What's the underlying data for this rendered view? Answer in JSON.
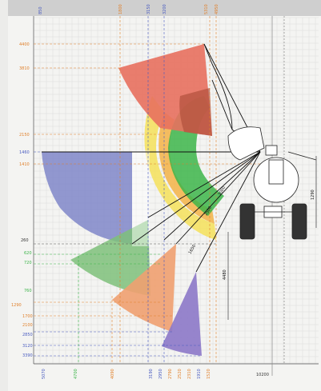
{
  "diagram": {
    "colors": {
      "red": "#e8705e",
      "yellow": "#f4e15a",
      "green": "#3cb54a",
      "blue": "#7f86c9",
      "orange": "#f0a070",
      "purple": "#8c78c8",
      "grid": "#d7d7d7",
      "dim_orange": "#e0802c",
      "dim_blue": "#4a5cc0"
    },
    "labels": {
      "top_1": "850",
      "top_2": "1800",
      "top_3": "3150",
      "top_4": "3200",
      "top_5": "5310",
      "top_6": "4950",
      "left_1": "4400",
      "left_2": "3810",
      "left_3": "2150",
      "left_4": "1460",
      "left_5": "1410",
      "left_6": "260",
      "left_7": "620",
      "left_8": "720",
      "left_9": "760",
      "left_10": "1290",
      "left_11": "1700",
      "left_12": "2100",
      "left_13": "2850",
      "left_14": "3120",
      "left_15": "3390",
      "bottom_1": "5070",
      "bottom_2": "4700",
      "bottom_3": "4090",
      "bottom_4": "3190",
      "bottom_5": "2950",
      "bottom_6": "2790",
      "bottom_7": "2520",
      "bottom_8": "2310",
      "bottom_9": "1910",
      "bottom_10": "1520",
      "bottom_11": "10200",
      "arm_1": "3000",
      "arm_2": "2500",
      "arm_3": "1650",
      "side": "1290",
      "vertical": "4480"
    }
  }
}
